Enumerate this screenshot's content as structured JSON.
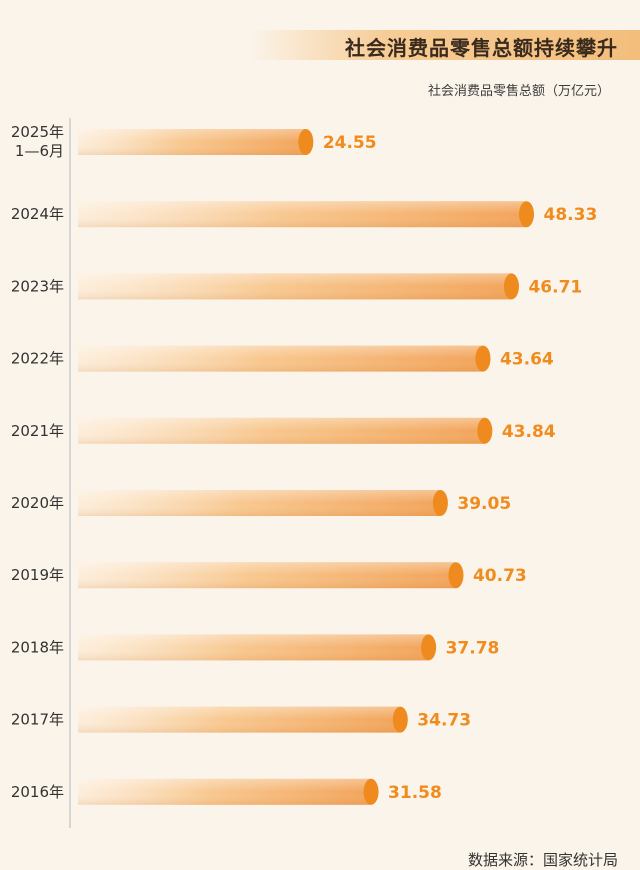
{
  "title": "社会消费品零售总额持续攀升",
  "source": "数据来源：国家统计局",
  "chart_data": {
    "type": "bar",
    "orientation": "horizontal",
    "title": "社会消费品零售总额持续攀升",
    "unit_label": "社会消费品零售总额（万亿元）",
    "categories": [
      [
        "2025年",
        "1—6月"
      ],
      [
        "2024年"
      ],
      [
        "2023年"
      ],
      [
        "2022年"
      ],
      [
        "2021年"
      ],
      [
        "2020年"
      ],
      [
        "2019年"
      ],
      [
        "2018年"
      ],
      [
        "2017年"
      ],
      [
        "2016年"
      ]
    ],
    "values": [
      24.55,
      48.33,
      46.71,
      43.64,
      43.84,
      39.05,
      40.73,
      37.78,
      34.73,
      31.58
    ],
    "value_labels": [
      "24.55",
      "48.33",
      "46.71",
      "43.64",
      "43.84",
      "39.05",
      "40.73",
      "37.78",
      "34.73",
      "31.58"
    ],
    "grid": false,
    "colors": {
      "bar_light": "#fdebd4",
      "bar_dark": "#f2a45a",
      "bar_cap": "#ee8a1e",
      "value_text": "#f08c1e",
      "axis": "#cccccc",
      "title_band": "#f3be7c"
    }
  }
}
